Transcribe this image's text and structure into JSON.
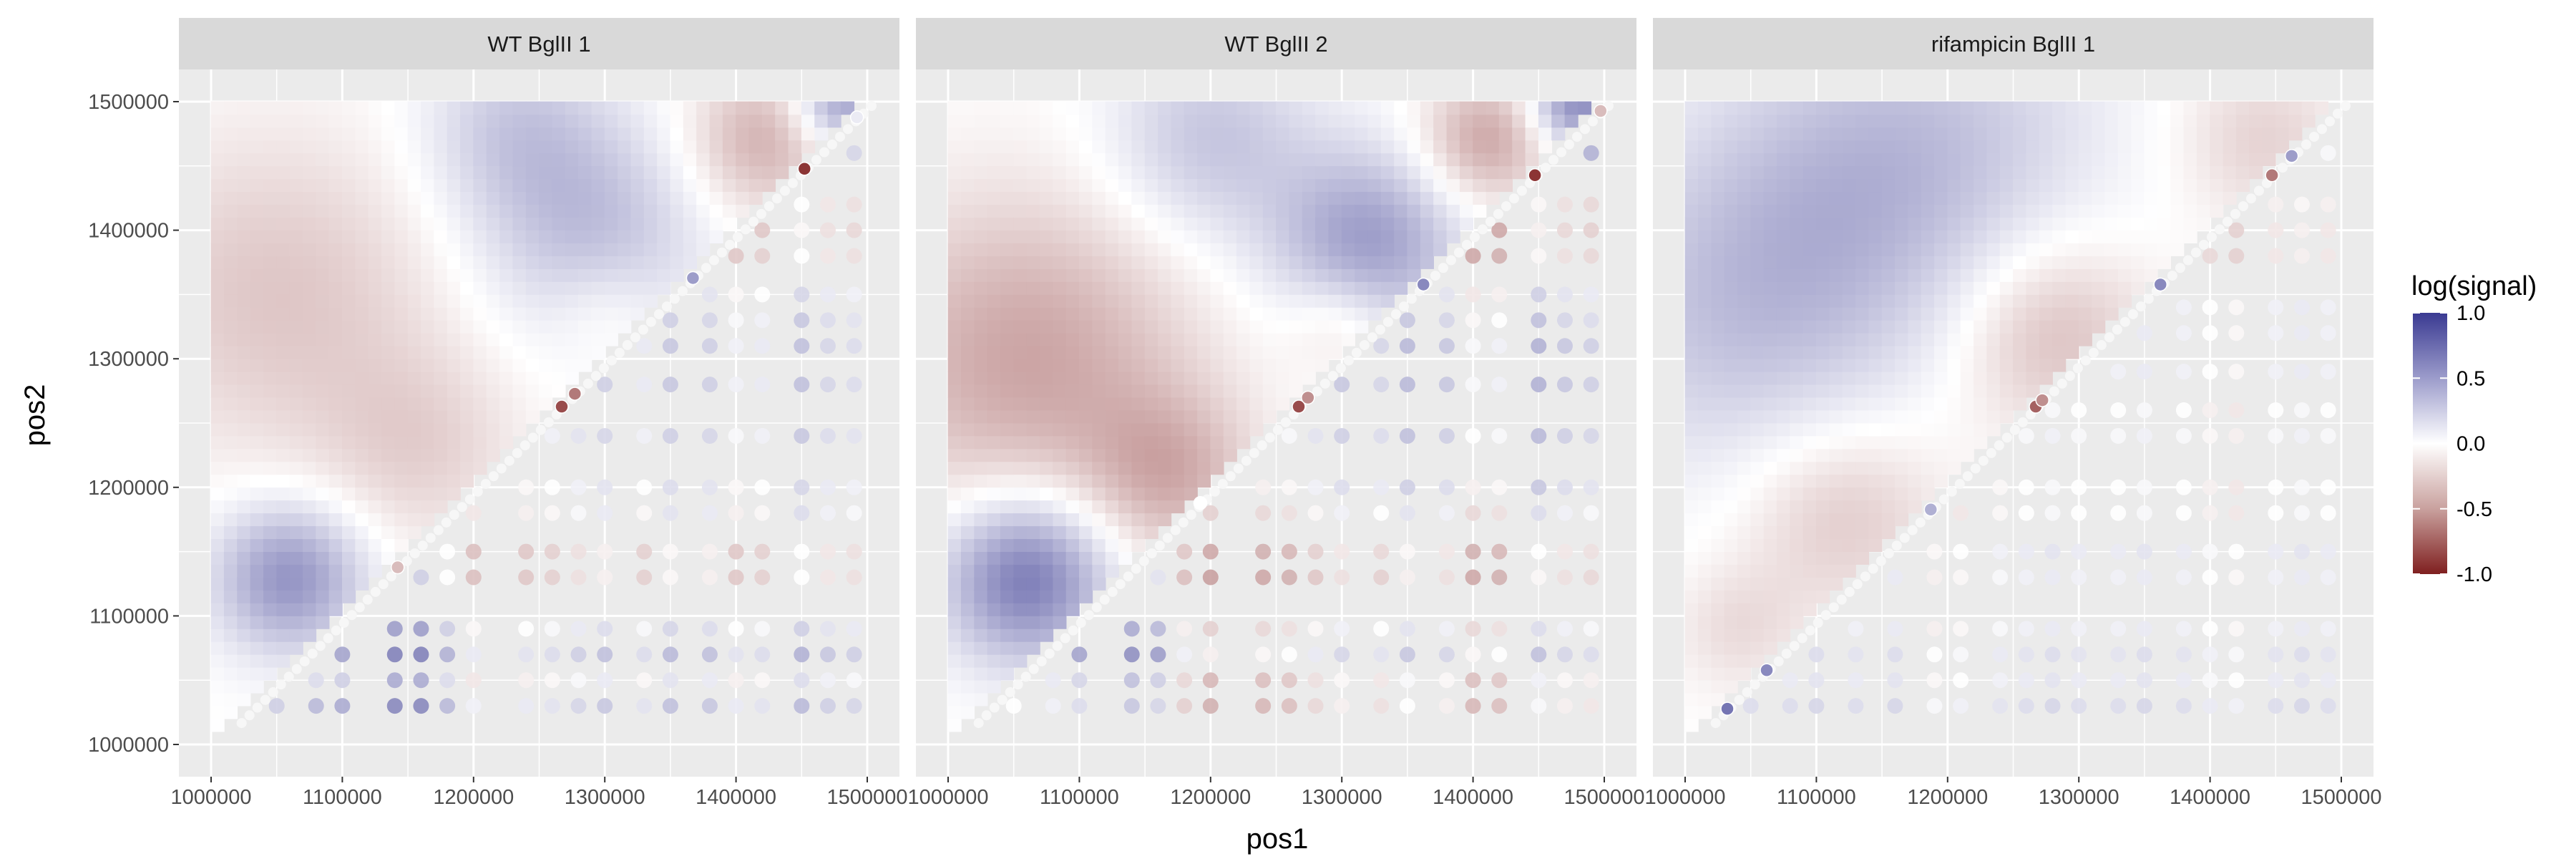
{
  "chart_data": {
    "type": "heatmap",
    "xlabel": "pos1",
    "ylabel": "pos2",
    "xlim": [
      1000000,
      1500000
    ],
    "ylim": [
      1000000,
      1500000
    ],
    "x_ticks": [
      "1000000",
      "1100000",
      "1200000",
      "1300000",
      "1400000",
      "1500000"
    ],
    "y_ticks": [
      "1000000",
      "1100000",
      "1200000",
      "1300000",
      "1400000",
      "1500000"
    ],
    "grid": true,
    "legend": {
      "title": "log(signal)",
      "position": "right",
      "range": [
        -1,
        1
      ],
      "ticks": [
        "1.0",
        "0.5",
        "0.0",
        "-0.5",
        "-1.0"
      ],
      "colors": {
        "low": "#7f1f1f",
        "mid": "#ffffff",
        "high": "#3a3a92"
      }
    },
    "panels": [
      {
        "title": "WT BglII 1",
        "upper_smooth": [
          {
            "x": 1060000,
            "y": 1130000,
            "value": 0.55,
            "spread": 40000
          },
          {
            "x": 1290000,
            "y": 1400000,
            "value": 0.32,
            "spread": 60000
          },
          {
            "x": 1230000,
            "y": 1480000,
            "value": 0.25,
            "spread": 50000
          },
          {
            "x": 1480000,
            "y": 1500000,
            "value": 0.5,
            "spread": 25000
          },
          {
            "x": 1420000,
            "y": 1470000,
            "value": -0.35,
            "spread": 40000
          },
          {
            "x": 1050000,
            "y": 1350000,
            "value": -0.25,
            "spread": 90000
          },
          {
            "x": 1160000,
            "y": 1230000,
            "value": -0.18,
            "spread": 55000
          },
          {
            "x": 1300000,
            "y": 1340000,
            "value": -0.12,
            "spread": 30000
          }
        ],
        "lower_rows": [
          {
            "y": 1030000,
            "value": 0.3
          },
          {
            "y": 1050000,
            "value": 0.05
          },
          {
            "y": 1070000,
            "value": 0.35
          },
          {
            "y": 1090000,
            "value": 0.15
          },
          {
            "y": 1130000,
            "value": -0.2
          },
          {
            "y": 1150000,
            "value": -0.2
          },
          {
            "y": 1180000,
            "value": 0.05
          },
          {
            "y": 1200000,
            "value": 0.1
          },
          {
            "y": 1240000,
            "value": 0.2
          },
          {
            "y": 1280000,
            "value": 0.25
          },
          {
            "y": 1310000,
            "value": 0.25
          },
          {
            "y": 1330000,
            "value": 0.2
          },
          {
            "y": 1350000,
            "value": 0.1
          },
          {
            "y": 1380000,
            "value": -0.2
          },
          {
            "y": 1400000,
            "value": -0.25
          },
          {
            "y": 1420000,
            "value": -0.2
          },
          {
            "y": 1460000,
            "value": 0.3
          }
        ],
        "lower_cols": [
          {
            "x": 1030000,
            "value": 0.0
          },
          {
            "x": 1050000,
            "value": 0.05
          },
          {
            "x": 1080000,
            "value": 0.2
          },
          {
            "x": 1100000,
            "value": 0.3
          },
          {
            "x": 1140000,
            "value": 0.55
          },
          {
            "x": 1160000,
            "value": 0.55
          },
          {
            "x": 1180000,
            "value": 0.2
          },
          {
            "x": 1200000,
            "value": -0.2
          },
          {
            "x": 1240000,
            "value": -0.15
          },
          {
            "x": 1260000,
            "value": -0.1
          },
          {
            "x": 1280000,
            "value": 0.0
          },
          {
            "x": 1300000,
            "value": 0.1
          },
          {
            "x": 1330000,
            "value": -0.1
          },
          {
            "x": 1350000,
            "value": 0.15
          },
          {
            "x": 1380000,
            "value": 0.1
          },
          {
            "x": 1400000,
            "value": -0.15
          },
          {
            "x": 1420000,
            "value": -0.1
          },
          {
            "x": 1450000,
            "value": 0.2
          },
          {
            "x": 1470000,
            "value": 0.05
          },
          {
            "x": 1490000,
            "value": 0.0
          }
        ],
        "diag_points": [
          {
            "pos": 1265000,
            "value": -0.8
          },
          {
            "pos": 1275000,
            "value": -0.6
          },
          {
            "pos": 1450000,
            "value": -0.9
          },
          {
            "pos": 1365000,
            "value": 0.5
          },
          {
            "pos": 1140000,
            "value": -0.3
          },
          {
            "pos": 1490000,
            "value": 0.1
          }
        ]
      },
      {
        "title": "WT BglII 2",
        "upper_smooth": [
          {
            "x": 1060000,
            "y": 1130000,
            "value": 0.7,
            "spread": 45000
          },
          {
            "x": 1320000,
            "y": 1390000,
            "value": 0.5,
            "spread": 50000
          },
          {
            "x": 1200000,
            "y": 1470000,
            "value": 0.3,
            "spread": 55000
          },
          {
            "x": 1480000,
            "y": 1500000,
            "value": 0.6,
            "spread": 25000
          },
          {
            "x": 1410000,
            "y": 1470000,
            "value": -0.4,
            "spread": 35000
          },
          {
            "x": 1060000,
            "y": 1300000,
            "value": -0.4,
            "spread": 90000
          },
          {
            "x": 1170000,
            "y": 1210000,
            "value": -0.3,
            "spread": 45000
          },
          {
            "x": 1300000,
            "y": 1330000,
            "value": -0.2,
            "spread": 30000
          }
        ],
        "lower_rows": [
          {
            "y": 1030000,
            "value": -0.2
          },
          {
            "y": 1050000,
            "value": -0.15
          },
          {
            "y": 1070000,
            "value": 0.2
          },
          {
            "y": 1090000,
            "value": 0.0
          },
          {
            "y": 1130000,
            "value": -0.3
          },
          {
            "y": 1150000,
            "value": -0.25
          },
          {
            "y": 1180000,
            "value": 0.0
          },
          {
            "y": 1200000,
            "value": 0.15
          },
          {
            "y": 1240000,
            "value": 0.25
          },
          {
            "y": 1280000,
            "value": 0.3
          },
          {
            "y": 1310000,
            "value": 0.3
          },
          {
            "y": 1330000,
            "value": 0.2
          },
          {
            "y": 1350000,
            "value": 0.1
          },
          {
            "y": 1380000,
            "value": -0.3
          },
          {
            "y": 1400000,
            "value": -0.35
          },
          {
            "y": 1420000,
            "value": -0.3
          },
          {
            "y": 1460000,
            "value": 0.5
          }
        ],
        "lower_cols": [
          {
            "x": 1030000,
            "value": 0.1
          },
          {
            "x": 1050000,
            "value": 0.2
          },
          {
            "x": 1080000,
            "value": 0.3
          },
          {
            "x": 1100000,
            "value": 0.45
          },
          {
            "x": 1140000,
            "value": 0.6
          },
          {
            "x": 1160000,
            "value": 0.5
          },
          {
            "x": 1180000,
            "value": -0.1
          },
          {
            "x": 1200000,
            "value": -0.3
          },
          {
            "x": 1240000,
            "value": -0.25
          },
          {
            "x": 1260000,
            "value": -0.2
          },
          {
            "x": 1280000,
            "value": -0.05
          },
          {
            "x": 1300000,
            "value": 0.1
          },
          {
            "x": 1330000,
            "value": 0.0
          },
          {
            "x": 1350000,
            "value": 0.2
          },
          {
            "x": 1380000,
            "value": 0.1
          },
          {
            "x": 1400000,
            "value": -0.25
          },
          {
            "x": 1420000,
            "value": -0.2
          },
          {
            "x": 1450000,
            "value": 0.25
          },
          {
            "x": 1470000,
            "value": 0.1
          },
          {
            "x": 1490000,
            "value": 0.05
          }
        ],
        "diag_points": [
          {
            "pos": 1265000,
            "value": -0.8
          },
          {
            "pos": 1272000,
            "value": -0.5
          },
          {
            "pos": 1445000,
            "value": -0.9
          },
          {
            "pos": 1360000,
            "value": 0.6
          },
          {
            "pos": 1190000,
            "value": 0.0
          },
          {
            "pos": 1495000,
            "value": -0.3
          }
        ]
      },
      {
        "title": "rifampicin BglII 1",
        "upper_smooth": [
          {
            "x": 1040000,
            "y": 1330000,
            "value": 0.25,
            "spread": 90000
          },
          {
            "x": 1200000,
            "y": 1470000,
            "value": 0.22,
            "spread": 90000
          },
          {
            "x": 1110000,
            "y": 1420000,
            "value": 0.2,
            "spread": 90000
          },
          {
            "x": 1120000,
            "y": 1180000,
            "value": -0.25,
            "spread": 55000
          },
          {
            "x": 1280000,
            "y": 1320000,
            "value": -0.3,
            "spread": 55000
          },
          {
            "x": 1440000,
            "y": 1470000,
            "value": -0.2,
            "spread": 45000
          },
          {
            "x": 1040000,
            "y": 1090000,
            "value": -0.15,
            "spread": 35000
          }
        ],
        "lower_rows": [
          {
            "y": 1030000,
            "value": 0.2
          },
          {
            "y": 1050000,
            "value": 0.1
          },
          {
            "y": 1070000,
            "value": 0.15
          },
          {
            "y": 1090000,
            "value": 0.05
          },
          {
            "y": 1130000,
            "value": 0.05
          },
          {
            "y": 1150000,
            "value": 0.1
          },
          {
            "y": 1180000,
            "value": -0.05
          },
          {
            "y": 1200000,
            "value": -0.05
          },
          {
            "y": 1240000,
            "value": 0.0
          },
          {
            "y": 1260000,
            "value": -0.05
          },
          {
            "y": 1290000,
            "value": 0.05
          },
          {
            "y": 1320000,
            "value": 0.05
          },
          {
            "y": 1340000,
            "value": 0.05
          },
          {
            "y": 1380000,
            "value": -0.2
          },
          {
            "y": 1400000,
            "value": -0.2
          },
          {
            "y": 1420000,
            "value": -0.15
          },
          {
            "y": 1460000,
            "value": 0.0
          }
        ],
        "lower_cols": [
          {
            "x": 1030000,
            "value": 0.0
          },
          {
            "x": 1050000,
            "value": 0.05
          },
          {
            "x": 1080000,
            "value": 0.05
          },
          {
            "x": 1100000,
            "value": 0.1
          },
          {
            "x": 1130000,
            "value": 0.05
          },
          {
            "x": 1160000,
            "value": 0.1
          },
          {
            "x": 1190000,
            "value": -0.15
          },
          {
            "x": 1210000,
            "value": -0.1
          },
          {
            "x": 1240000,
            "value": 0.0
          },
          {
            "x": 1260000,
            "value": 0.05
          },
          {
            "x": 1280000,
            "value": 0.1
          },
          {
            "x": 1300000,
            "value": 0.05
          },
          {
            "x": 1330000,
            "value": 0.05
          },
          {
            "x": 1350000,
            "value": 0.1
          },
          {
            "x": 1380000,
            "value": 0.05
          },
          {
            "x": 1400000,
            "value": -0.05
          },
          {
            "x": 1420000,
            "value": -0.1
          },
          {
            "x": 1450000,
            "value": 0.05
          },
          {
            "x": 1470000,
            "value": 0.1
          },
          {
            "x": 1490000,
            "value": 0.05
          }
        ],
        "diag_points": [
          {
            "pos": 1265000,
            "value": -0.7
          },
          {
            "pos": 1270000,
            "value": -0.5
          },
          {
            "pos": 1445000,
            "value": -0.6
          },
          {
            "pos": 1360000,
            "value": 0.6
          },
          {
            "pos": 1185000,
            "value": 0.4
          },
          {
            "pos": 1030000,
            "value": 0.7
          },
          {
            "pos": 1060000,
            "value": 0.6
          },
          {
            "pos": 1460000,
            "value": 0.5
          }
        ]
      }
    ]
  }
}
